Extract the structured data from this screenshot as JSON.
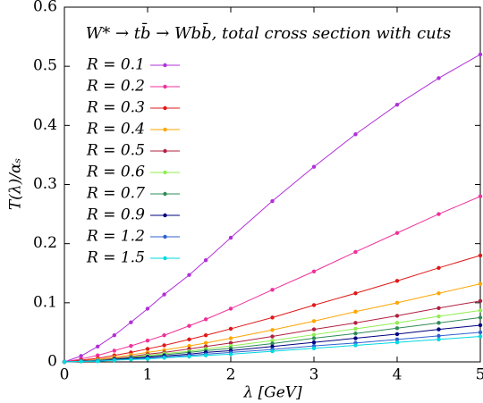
{
  "chart_data": {
    "type": "line",
    "title": "W* → tb̄ → Wbb̄, total cross section with cuts",
    "x_label": "λ [GeV]",
    "y_label": "T(λ)/αₛ",
    "x": [
      0,
      0.2,
      0.4,
      0.6,
      0.8,
      1.0,
      1.2,
      1.5,
      1.7,
      2.0,
      2.5,
      3.0,
      3.5,
      4.0,
      4.5,
      5.0
    ],
    "series": [
      {
        "name": "R = 0.1",
        "color": "#b030d8",
        "values": [
          0,
          0.01,
          0.026,
          0.045,
          0.067,
          0.09,
          0.114,
          0.147,
          0.172,
          0.21,
          0.272,
          0.33,
          0.385,
          0.435,
          0.48,
          0.52
        ]
      },
      {
        "name": "R = 0.2",
        "color": "#f0309a",
        "values": [
          0,
          0.005,
          0.011,
          0.019,
          0.027,
          0.036,
          0.045,
          0.061,
          0.072,
          0.09,
          0.122,
          0.153,
          0.186,
          0.218,
          0.25,
          0.28
        ]
      },
      {
        "name": "R = 0.3",
        "color": "#e01818",
        "values": [
          0,
          0.003,
          0.006,
          0.011,
          0.016,
          0.022,
          0.028,
          0.038,
          0.045,
          0.056,
          0.075,
          0.096,
          0.116,
          0.137,
          0.159,
          0.18
        ]
      },
      {
        "name": "R = 0.4",
        "color": "#ffa500",
        "values": [
          0,
          0.002,
          0.004,
          0.008,
          0.012,
          0.016,
          0.02,
          0.027,
          0.032,
          0.04,
          0.054,
          0.069,
          0.085,
          0.1,
          0.116,
          0.132
        ]
      },
      {
        "name": "R = 0.5",
        "color": "#b02040",
        "values": [
          0,
          0.002,
          0.003,
          0.006,
          0.009,
          0.013,
          0.016,
          0.022,
          0.026,
          0.032,
          0.043,
          0.055,
          0.066,
          0.078,
          0.091,
          0.103
        ]
      },
      {
        "name": "R = 0.6",
        "color": "#90ee50",
        "values": [
          0,
          0.001,
          0.003,
          0.005,
          0.008,
          0.011,
          0.014,
          0.018,
          0.022,
          0.027,
          0.036,
          0.046,
          0.056,
          0.066,
          0.077,
          0.087
        ]
      },
      {
        "name": "R = 0.7",
        "color": "#2e8b57",
        "values": [
          0,
          0.001,
          0.002,
          0.005,
          0.007,
          0.009,
          0.012,
          0.016,
          0.019,
          0.023,
          0.031,
          0.04,
          0.048,
          0.057,
          0.066,
          0.075
        ]
      },
      {
        "name": "R = 0.9",
        "color": "#000080",
        "values": [
          0,
          0.001,
          0.002,
          0.004,
          0.006,
          0.008,
          0.01,
          0.013,
          0.016,
          0.019,
          0.026,
          0.033,
          0.04,
          0.047,
          0.055,
          0.062
        ]
      },
      {
        "name": "R = 1.2",
        "color": "#3060d0",
        "values": [
          0,
          0.001,
          0.002,
          0.003,
          0.005,
          0.006,
          0.008,
          0.011,
          0.013,
          0.016,
          0.021,
          0.027,
          0.032,
          0.038,
          0.044,
          0.05
        ]
      },
      {
        "name": "R = 1.5",
        "color": "#00d8e0",
        "values": [
          0,
          0.001,
          0.001,
          0.003,
          0.004,
          0.005,
          0.007,
          0.009,
          0.011,
          0.013,
          0.018,
          0.023,
          0.028,
          0.033,
          0.038,
          0.043
        ]
      }
    ],
    "xlim": [
      0,
      5
    ],
    "xticks": [
      0,
      1,
      2,
      3,
      4,
      5
    ],
    "ylim": [
      0,
      0.6
    ],
    "yticks": [
      0,
      0.1,
      0.2,
      0.3,
      0.4,
      0.5,
      0.6
    ],
    "grid": false,
    "legend": "upper left"
  }
}
